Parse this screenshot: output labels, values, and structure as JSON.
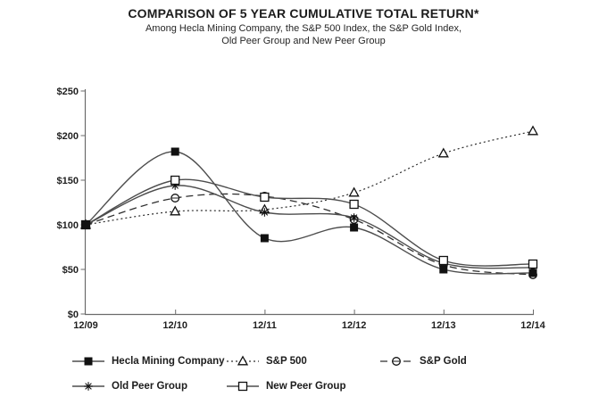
{
  "title": "COMPARISON OF 5 YEAR CUMULATIVE TOTAL RETURN*",
  "subtitle_line1": "Among Hecla Mining Company, the S&P 500 Index, the S&P Gold Index,",
  "subtitle_line2": "Old Peer Group and New Peer Group",
  "colors": {
    "solid_line": "#4d4d4d",
    "dash_line": "#2e2e2e",
    "marker": "#111111",
    "axis": "#6b6b6b",
    "text": "#1f1f1f"
  },
  "chart_data": {
    "type": "line",
    "title": "COMPARISON OF 5 YEAR CUMULATIVE TOTAL RETURN*",
    "xlabel": "",
    "ylabel": "",
    "x": [
      "12/09",
      "12/10",
      "12/11",
      "12/12",
      "12/13",
      "12/14"
    ],
    "y_ticks": [
      "$0",
      "$50",
      "$100",
      "$150",
      "$200",
      "$250"
    ],
    "ylim": [
      0,
      250
    ],
    "grid": false,
    "smooth": true,
    "legend_position": "bottom",
    "series": [
      {
        "name": "Hecla Mining Company",
        "marker": "square-filled",
        "line": "solid",
        "values": [
          100,
          182,
          85,
          97,
          50,
          46
        ]
      },
      {
        "name": "S&P 500",
        "marker": "triangle-open",
        "line": "dotted",
        "values": [
          100,
          115,
          117,
          136,
          180,
          205
        ]
      },
      {
        "name": "S&P Gold",
        "marker": "circle-open",
        "line": "dashed",
        "values": [
          100,
          130,
          132,
          106,
          55,
          44
        ]
      },
      {
        "name": "Old Peer Group",
        "marker": "asterisk",
        "line": "solid",
        "values": [
          100,
          144,
          114,
          108,
          57,
          52
        ]
      },
      {
        "name": "New Peer Group",
        "marker": "square-open",
        "line": "solid",
        "values": [
          100,
          150,
          131,
          123,
          60,
          56
        ]
      }
    ]
  }
}
